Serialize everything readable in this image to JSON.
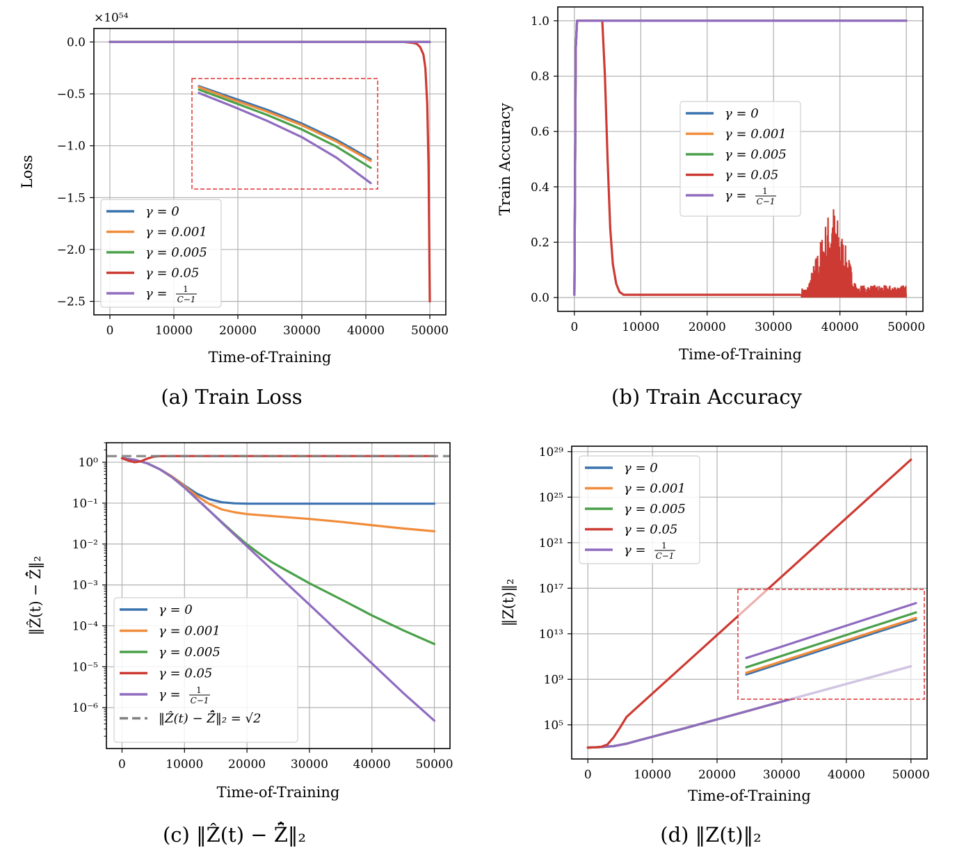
{
  "colors": {
    "g0": "#3a72ae",
    "g0001": "#f08c3a",
    "g0005": "#4aa04a",
    "g005": "#cc3a33",
    "gC": "#8f6bbf",
    "ref": "#808080",
    "inset": "#e03030"
  },
  "legend_labels": {
    "g0": "γ = 0",
    "g0001": "γ = 0.001",
    "g0005": "γ = 0.005",
    "g005": "γ = 0.05",
    "gC_prefix": "γ =",
    "gC_num": "1",
    "gC_den": "C−1",
    "ref": "‖Ẑ(t) − Z̄̂‖₂ = √2"
  },
  "chart_data": [
    {
      "id": "a",
      "type": "line",
      "caption": "(a)  Train Loss",
      "xlabel": "Time-of-Training",
      "ylabel": "Loss",
      "offset_label": "×10⁵⁴",
      "xlim": [
        -2500,
        52500
      ],
      "ylim": [
        -2.63,
        0.13
      ],
      "xticks": [
        "0",
        "10000",
        "20000",
        "30000",
        "40000",
        "50000"
      ],
      "yticks": [
        "0.0",
        "−0.5",
        "−1.0",
        "−1.5",
        "−2.0",
        "−2.5"
      ],
      "grid": true,
      "legend_position": "lower-left",
      "series": [
        {
          "key": "g0",
          "x": [
            0,
            50000
          ],
          "y": [
            0,
            0
          ]
        },
        {
          "key": "g0001",
          "x": [
            0,
            50000
          ],
          "y": [
            0,
            0
          ]
        },
        {
          "key": "g0005",
          "x": [
            0,
            50000
          ],
          "y": [
            0,
            0
          ]
        },
        {
          "key": "g005",
          "x": [
            0,
            46000,
            47500,
            48000,
            48500,
            49000,
            49300,
            49600,
            49800,
            50000
          ],
          "y": [
            0,
            0,
            -0.01,
            -0.02,
            -0.05,
            -0.12,
            -0.25,
            -0.6,
            -1.2,
            -2.5
          ]
        },
        {
          "key": "gC",
          "x": [
            0,
            50000
          ],
          "y": [
            0,
            0
          ]
        }
      ],
      "inset_series": [
        {
          "key": "g0",
          "y": [
            0.96,
            0.82,
            0.68,
            0.52,
            0.33,
            0.1
          ]
        },
        {
          "key": "g0001",
          "y": [
            0.95,
            0.8,
            0.66,
            0.5,
            0.31,
            0.08
          ]
        },
        {
          "key": "g0005",
          "y": [
            0.92,
            0.77,
            0.62,
            0.45,
            0.25,
            0.0
          ]
        },
        {
          "key": "gC",
          "y": [
            0.88,
            0.72,
            0.55,
            0.36,
            0.12,
            -0.18
          ]
        }
      ]
    },
    {
      "id": "b",
      "type": "line",
      "caption": "(b)  Train Accuracy",
      "xlabel": "Time-of-Training",
      "ylabel": "Train Accuracy",
      "xlim": [
        -2500,
        52500
      ],
      "ylim": [
        -0.05,
        1.05
      ],
      "xticks": [
        "0",
        "10000",
        "20000",
        "30000",
        "40000",
        "50000"
      ],
      "yticks": [
        "0.0",
        "0.2",
        "0.4",
        "0.6",
        "0.8",
        "1.0"
      ],
      "grid": true,
      "legend_position": "center",
      "series": [
        {
          "key": "g0",
          "x": [
            0,
            200,
            400,
            50000
          ],
          "y": [
            0.01,
            0.9,
            1.0,
            1.0
          ]
        },
        {
          "key": "g0001",
          "x": [
            0,
            200,
            400,
            50000
          ],
          "y": [
            0.01,
            0.9,
            1.0,
            1.0
          ]
        },
        {
          "key": "g0005",
          "x": [
            0,
            200,
            400,
            50000
          ],
          "y": [
            0.01,
            0.9,
            1.0,
            1.0
          ]
        },
        {
          "key": "g005",
          "x": [
            0,
            200,
            400,
            4200,
            4600,
            5000,
            5400,
            5800,
            6300,
            6800,
            7400,
            34000
          ],
          "y": [
            0.01,
            0.9,
            1.0,
            1.0,
            0.8,
            0.5,
            0.25,
            0.12,
            0.05,
            0.02,
            0.01,
            0.01
          ]
        },
        {
          "key": "gC",
          "x": [
            0,
            200,
            400,
            50000
          ],
          "y": [
            0.01,
            0.9,
            1.0,
            1.0
          ]
        }
      ],
      "noise_region": {
        "x_start": 34200,
        "x_end": 50000,
        "peak_x": 38800,
        "peak_y": 0.36
      }
    },
    {
      "id": "c",
      "type": "line",
      "caption": "(c)  ‖Ẑ(t) − Z̄̂‖₂",
      "xlabel": "Time-of-Training",
      "ylabel": "‖Ẑ(t) − Z̄̂‖₂",
      "yscale": "log",
      "xlim": [
        -2500,
        52500
      ],
      "ylim": [
        1e-07,
        3
      ],
      "xticks": [
        "0",
        "10000",
        "20000",
        "30000",
        "40000",
        "50000"
      ],
      "yticks": [
        "10⁰",
        "10⁻¹",
        "10⁻²",
        "10⁻³",
        "10⁻⁴",
        "10⁻⁵",
        "10⁻⁶"
      ],
      "grid": true,
      "legend_position": "lower-left",
      "series": [
        {
          "key": "g0",
          "x": [
            0,
            2000,
            4000,
            6000,
            8000,
            10000,
            12000,
            14000,
            16000,
            18000,
            20000,
            30000,
            40000,
            50000
          ],
          "y": [
            1.25,
            1.15,
            0.95,
            0.68,
            0.45,
            0.27,
            0.17,
            0.125,
            0.105,
            0.099,
            0.097,
            0.097,
            0.097,
            0.097
          ]
        },
        {
          "key": "g0001",
          "x": [
            0,
            2000,
            4000,
            6000,
            8000,
            10000,
            12000,
            14000,
            16000,
            18000,
            20000,
            25000,
            30000,
            35000,
            40000,
            45000,
            50000
          ],
          "y": [
            1.25,
            1.15,
            0.95,
            0.68,
            0.45,
            0.26,
            0.15,
            0.095,
            0.07,
            0.06,
            0.054,
            0.047,
            0.041,
            0.035,
            0.029,
            0.024,
            0.0205
          ]
        },
        {
          "key": "g0005",
          "x": [
            0,
            2000,
            4000,
            6000,
            8000,
            10000,
            12000,
            14000,
            16000,
            18000,
            20000,
            22000,
            24000,
            26000,
            30000,
            35000,
            40000,
            45000,
            50000
          ],
          "y": [
            1.25,
            1.15,
            0.95,
            0.68,
            0.43,
            0.24,
            0.125,
            0.065,
            0.034,
            0.018,
            0.0098,
            0.0058,
            0.0036,
            0.0024,
            0.0011,
            0.00045,
            0.00018,
            7.8e-05,
            3.6e-05
          ]
        },
        {
          "key": "g005",
          "x": [
            0,
            1000,
            2000,
            3000,
            4000,
            5000,
            6000,
            8000,
            50000
          ],
          "y": [
            1.25,
            1.1,
            1.0,
            1.05,
            1.22,
            1.36,
            1.41,
            1.414,
            1.414
          ]
        },
        {
          "key": "gC",
          "x": [
            0,
            2000,
            4000,
            6000,
            8000,
            10000,
            12000,
            14000,
            16000,
            18000,
            20000,
            25000,
            30000,
            35000,
            40000,
            45000,
            50000
          ],
          "y": [
            1.25,
            1.15,
            0.95,
            0.68,
            0.43,
            0.24,
            0.125,
            0.065,
            0.033,
            0.017,
            0.0088,
            0.0017,
            0.00033,
            6.3e-05,
            1.21e-05,
            2.3e-06,
            4.8e-07
          ]
        }
      ],
      "reference_line": {
        "key": "ref",
        "y": 1.414
      }
    },
    {
      "id": "d",
      "type": "line",
      "caption": "(d)  ‖Z(t)‖₂",
      "xlabel": "Time-of-Training",
      "ylabel": "‖Z(t)‖₂",
      "yscale": "log",
      "xlim": [
        -2500,
        52500
      ],
      "ylim": [
        100.0,
        3e+29
      ],
      "xticks": [
        "0",
        "10000",
        "20000",
        "30000",
        "40000",
        "50000"
      ],
      "yticks": [
        "10²⁹",
        "10²⁵",
        "10²¹",
        "10¹⁷",
        "10¹³",
        "10⁹",
        "10⁵"
      ],
      "grid": true,
      "legend_position": "upper-left",
      "series": [
        {
          "key": "g0",
          "x": [
            0,
            2000,
            4000,
            6000,
            8000,
            10000,
            12000,
            15000,
            20000,
            25000,
            30000,
            35000,
            40000,
            45000,
            50000
          ],
          "y": [
            1000,
            1100,
            1350,
            2200,
            4500,
            9000,
            18000,
            50000,
            300000,
            1800000.0,
            11000000.0,
            65000000.0,
            390000000.0,
            2300000000.0,
            14000000000.0
          ]
        },
        {
          "key": "g0001",
          "x": [
            0,
            2000,
            4000,
            6000,
            8000,
            10000,
            12000,
            15000,
            20000,
            25000,
            30000,
            35000,
            40000,
            45000,
            50000
          ],
          "y": [
            1000,
            1100,
            1350,
            2200,
            4500,
            9000,
            18000,
            50000,
            300000,
            1800000.0,
            11000000.0,
            65000000.0,
            390000000.0,
            2300000000.0,
            14000000000.0
          ]
        },
        {
          "key": "g0005",
          "x": [
            0,
            2000,
            4000,
            6000,
            8000,
            10000,
            12000,
            15000,
            20000,
            25000,
            30000,
            35000,
            40000,
            45000,
            50000
          ],
          "y": [
            1000,
            1100,
            1350,
            2200,
            4500,
            9000,
            18000,
            50000,
            300000,
            1800000.0,
            11000000.0,
            65000000.0,
            390000000.0,
            2300000000.0,
            14000000000.0
          ]
        },
        {
          "key": "g005",
          "x": [
            0,
            1000,
            2000,
            3000,
            4000,
            5000,
            6000,
            50000
          ],
          "y": [
            1000,
            1050,
            1150,
            1800,
            8000,
            60000,
            500000,
            2e+28
          ]
        },
        {
          "key": "gC",
          "x": [
            0,
            2000,
            4000,
            6000,
            8000,
            10000,
            12000,
            15000,
            20000,
            25000,
            30000,
            35000,
            40000,
            45000,
            50000
          ],
          "y": [
            1000,
            1100,
            1350,
            2200,
            4500,
            9000,
            18000,
            50000,
            300000,
            1800000.0,
            11000000.0,
            65000000.0,
            390000000.0,
            2300000000.0,
            14000000000.0
          ]
        }
      ],
      "inset_series": [
        {
          "key": "g0",
          "y": [
            0.0,
            1.0
          ]
        },
        {
          "key": "g0001",
          "y": [
            0.03,
            1.03
          ]
        },
        {
          "key": "g0005",
          "y": [
            0.13,
            1.13
          ]
        },
        {
          "key": "gC",
          "y": [
            0.3,
            1.3
          ]
        }
      ]
    }
  ]
}
